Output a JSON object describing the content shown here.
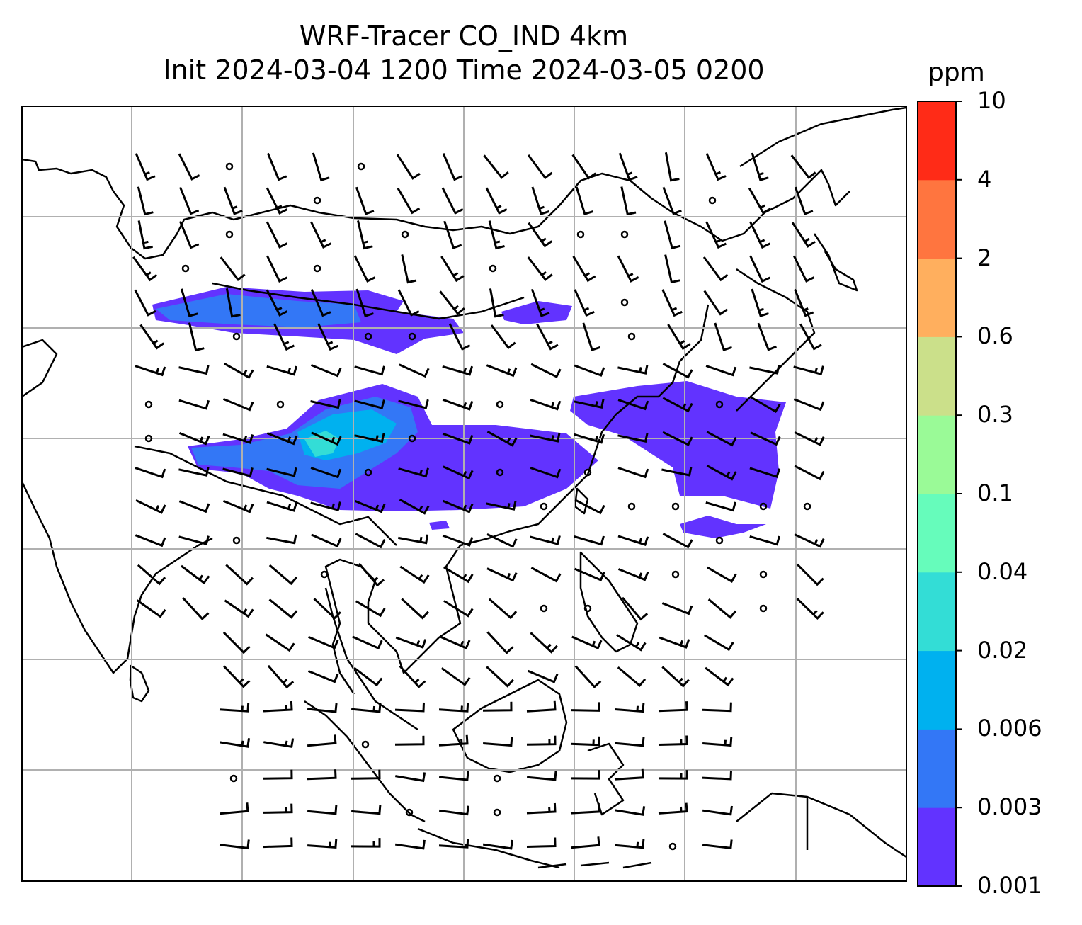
{
  "title_line1": "WRF-Tracer CO_IND 4km",
  "title_line2": "Init 2024-03-04 1200 Time 2024-03-05 0200",
  "colorbar": {
    "unit": "ppm",
    "tick_labels": [
      "0.001",
      "0.003",
      "0.006",
      "0.02",
      "0.04",
      "0.1",
      "0.3",
      "0.6",
      "2",
      "4",
      "10"
    ],
    "colors": [
      "#6233ff",
      "#3377f6",
      "#00b1ef",
      "#33ddd6",
      "#66fcbb",
      "#9afa97",
      "#cbe08a",
      "#ffaf5e",
      "#ff753f",
      "#ff2b17"
    ]
  },
  "colors": {
    "land_line": "#000000",
    "grid": "#b0b0b0",
    "barb": "#000000"
  }
}
